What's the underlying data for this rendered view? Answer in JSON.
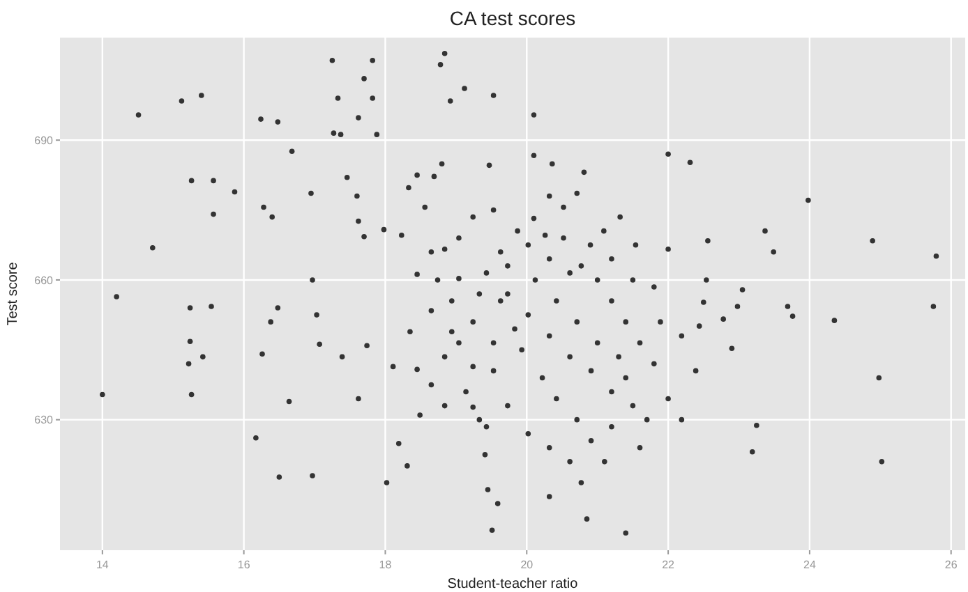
{
  "chart_data": {
    "type": "scatter",
    "title": "CA test scores",
    "xlabel": "Student-teacher ratio",
    "ylabel": "Test score",
    "xlim": [
      13.4,
      26.2
    ],
    "xticks": [
      14,
      16,
      18,
      20,
      22,
      24,
      26
    ],
    "ylim": [
      602,
      712
    ],
    "yticks": [
      630,
      660,
      690
    ],
    "grid": true,
    "marker": "circle",
    "series": [
      {
        "color": "#333333",
        "x": [
          14.0,
          14.2,
          14.51,
          14.71,
          15.12,
          15.4,
          15.26,
          15.57,
          15.87,
          15.57,
          15.24,
          15.24,
          15.54,
          15.22,
          15.42,
          15.26,
          16.17,
          16.26,
          16.48,
          16.24,
          16.28,
          16.4,
          16.48,
          16.38,
          16.5,
          16.64,
          16.68,
          16.95,
          16.97,
          17.03,
          16.97,
          17.25,
          17.33,
          17.27,
          17.37,
          17.7,
          17.82,
          17.82,
          17.62,
          17.88,
          17.46,
          17.6,
          17.98,
          17.62,
          17.7,
          17.07,
          17.39,
          17.62,
          17.74,
          18.02,
          18.31,
          18.19,
          18.49,
          18.11,
          18.45,
          18.84,
          18.78,
          18.92,
          19.12,
          19.53,
          19.47,
          18.8,
          18.45,
          18.33,
          18.69,
          18.56,
          18.23,
          18.45,
          18.65,
          18.84,
          19.04,
          18.65,
          18.35,
          18.94,
          19.04,
          19.24,
          19.53,
          19.24,
          19.33,
          19.41,
          19.45,
          19.59,
          19.51,
          20.1,
          20.1,
          20.36,
          20.1,
          20.26,
          20.52,
          20.71,
          20.81,
          21.09,
          21.32,
          21.54,
          22.0,
          22.31,
          22.0,
          22.56,
          22.54,
          22.5,
          22.44,
          22.78,
          22.9,
          23.05,
          22.98,
          23.25,
          23.19,
          23.37,
          23.49,
          23.69,
          23.76,
          23.98,
          24.35,
          24.89,
          24.98,
          25.02,
          25.79,
          25.75,
          20.32,
          20.52,
          20.77,
          21.0,
          21.2,
          21.4,
          19.87,
          19.63,
          19.43,
          19.73,
          20.02,
          20.32,
          20.61,
          20.91,
          21.2,
          21.5,
          21.7,
          19.93,
          20.22,
          20.42,
          20.71,
          20.91,
          21.1,
          20.77,
          20.85,
          21.4,
          20.32,
          20.61,
          21.6,
          21.8,
          22.0,
          22.19,
          22.39,
          19.63,
          19.24,
          18.84,
          18.65,
          19.04,
          19.24,
          19.53,
          19.73,
          20.12,
          20.42,
          20.71,
          21.0,
          21.3,
          21.6,
          21.89,
          22.19,
          21.8,
          21.5,
          21.2,
          20.9,
          20.61,
          20.32,
          20.02,
          19.83,
          19.53,
          19.33,
          18.94,
          18.74,
          19.14,
          18.84,
          19.43,
          19.73,
          20.02,
          20.32,
          21.2,
          21.4
        ],
        "values": [
          635.4,
          656.4,
          695.4,
          666.9,
          698.4,
          699.6,
          681.3,
          681.3,
          678.9,
          674.1,
          654,
          646.8,
          654.3,
          642,
          643.5,
          635.4,
          626.1,
          644.1,
          693.9,
          694.5,
          675.6,
          673.5,
          654,
          651,
          617.7,
          633.9,
          687.6,
          678.6,
          660,
          652.5,
          618,
          707.1,
          699,
          691.5,
          691.2,
          703.2,
          707.1,
          699,
          694.8,
          691.2,
          682,
          678,
          670.8,
          672.6,
          669.3,
          646.2,
          643.5,
          634.5,
          645.9,
          616.5,
          620.1,
          624.9,
          631,
          641.4,
          640.8,
          708.6,
          706.2,
          698.4,
          701.1,
          699.6,
          684.6,
          684.9,
          682.5,
          679.8,
          682.2,
          675.6,
          669.6,
          661.2,
          666,
          666.6,
          660.3,
          653.4,
          648.9,
          648.9,
          646.5,
          641.4,
          640.5,
          632.7,
          630,
          622.5,
          615,
          612,
          606.3,
          695.4,
          686.7,
          684.9,
          673.2,
          669.6,
          675.6,
          678.6,
          683.1,
          670.5,
          673.5,
          667.5,
          687,
          685.2,
          666.6,
          668.4,
          660,
          655.2,
          650.1,
          651.6,
          645.3,
          657.9,
          654.3,
          628.8,
          623.1,
          670.5,
          666,
          654.3,
          652.2,
          677.1,
          651.3,
          668.4,
          639,
          621,
          665.1,
          654.3,
          678,
          669,
          663,
          660,
          655.5,
          651,
          670.5,
          666,
          661.5,
          657,
          652.5,
          648,
          643.5,
          640.5,
          636,
          633,
          630,
          645,
          639,
          634.5,
          630,
          625.5,
          621,
          616.5,
          608.7,
          605.7,
          613.5,
          621,
          624,
          642,
          634.5,
          630,
          640.5,
          655.5,
          651,
          643.5,
          637.5,
          669,
          673.5,
          675,
          663,
          660,
          655.5,
          651,
          646.5,
          643.5,
          646.5,
          651,
          648,
          658.5,
          660,
          664.5,
          667.5,
          661.5,
          664.5,
          667.5,
          649.5,
          646.5,
          657,
          655.5,
          660,
          636,
          633,
          628.5,
          633,
          627,
          624,
          628.5,
          639
        ]
      }
    ]
  }
}
